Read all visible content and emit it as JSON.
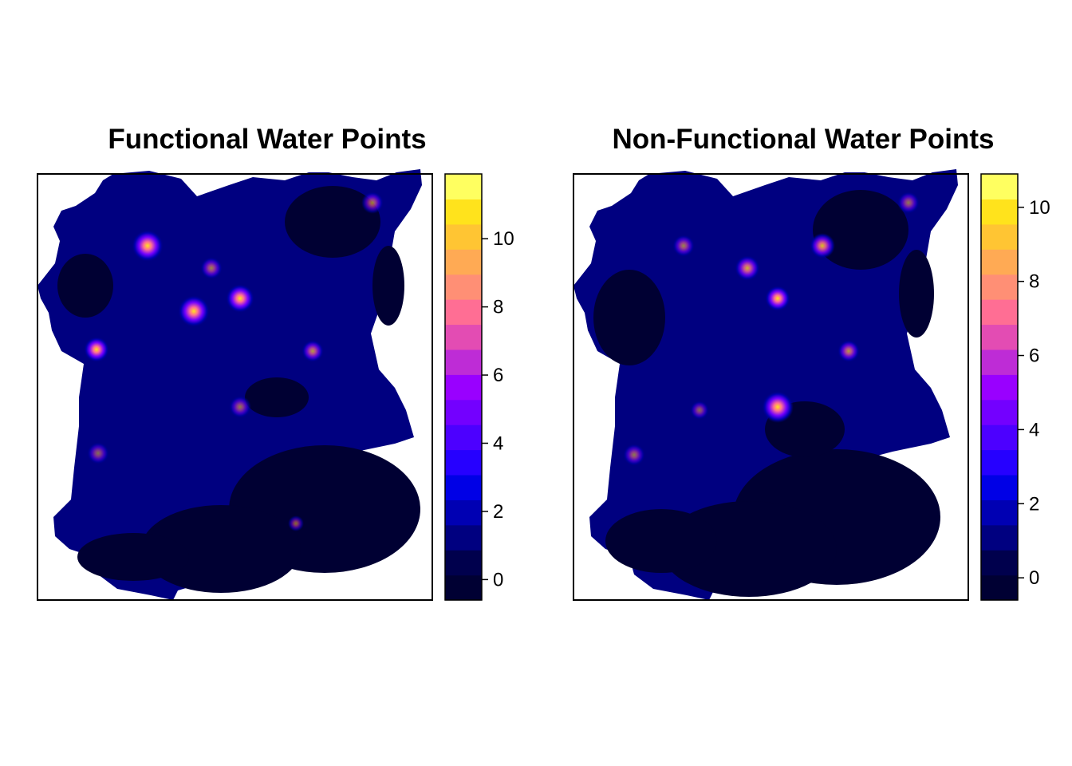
{
  "chart_data": [
    {
      "type": "heatmap",
      "title": "Functional Water Points",
      "legend": {
        "ticks": [
          0,
          2,
          4,
          6,
          8,
          10
        ],
        "tick_labels": [
          "0",
          "2",
          "4",
          "6",
          "8",
          "10"
        ],
        "range": [
          -0.6,
          11.9
        ]
      },
      "hotspots": [
        {
          "label": "hotspot-1",
          "value": 10.0
        },
        {
          "label": "hotspot-2",
          "value": 9.0
        },
        {
          "label": "hotspot-3",
          "value": 7.5
        },
        {
          "label": "hotspot-4",
          "value": 6.5
        },
        {
          "label": "hotspot-5",
          "value": 4.5
        },
        {
          "label": "hotspot-6",
          "value": 4.0
        },
        {
          "label": "hotspot-7",
          "value": 4.0
        },
        {
          "label": "hotspot-8",
          "value": 3.5
        },
        {
          "label": "hotspot-9",
          "value": 3.5
        },
        {
          "label": "hotspot-10",
          "value": 3.0
        }
      ]
    },
    {
      "type": "heatmap",
      "title": "Non-Functional Water Points",
      "legend": {
        "ticks": [
          0,
          2,
          4,
          6,
          8,
          10
        ],
        "tick_labels": [
          "0",
          "2",
          "4",
          "6",
          "8",
          "10"
        ],
        "range": [
          -0.6,
          10.9
        ]
      },
      "hotspots": [
        {
          "label": "hotspot-1",
          "value": 9.5
        },
        {
          "label": "hotspot-2",
          "value": 6.0
        },
        {
          "label": "hotspot-3",
          "value": 5.0
        },
        {
          "label": "hotspot-4",
          "value": 5.0
        },
        {
          "label": "hotspot-5",
          "value": 4.5
        },
        {
          "label": "hotspot-6",
          "value": 4.0
        },
        {
          "label": "hotspot-7",
          "value": 3.5
        },
        {
          "label": "hotspot-8",
          "value": 3.5
        },
        {
          "label": "hotspot-9",
          "value": 3.0
        }
      ]
    }
  ],
  "colors": {
    "palette": [
      "#000033",
      "#00004d",
      "#000080",
      "#0000b3",
      "#0000e6",
      "#2600ff",
      "#4c00ff",
      "#7300ff",
      "#9900ff",
      "#be2cd6",
      "#e34cb3",
      "#ff6e94",
      "#ff8f75",
      "#ffaa54",
      "#ffc533",
      "#ffe31c",
      "#ffff60"
    ],
    "region_fill": "#000080",
    "sparse_fill": "#000033",
    "frame": "#000000",
    "background": "#ffffff"
  }
}
